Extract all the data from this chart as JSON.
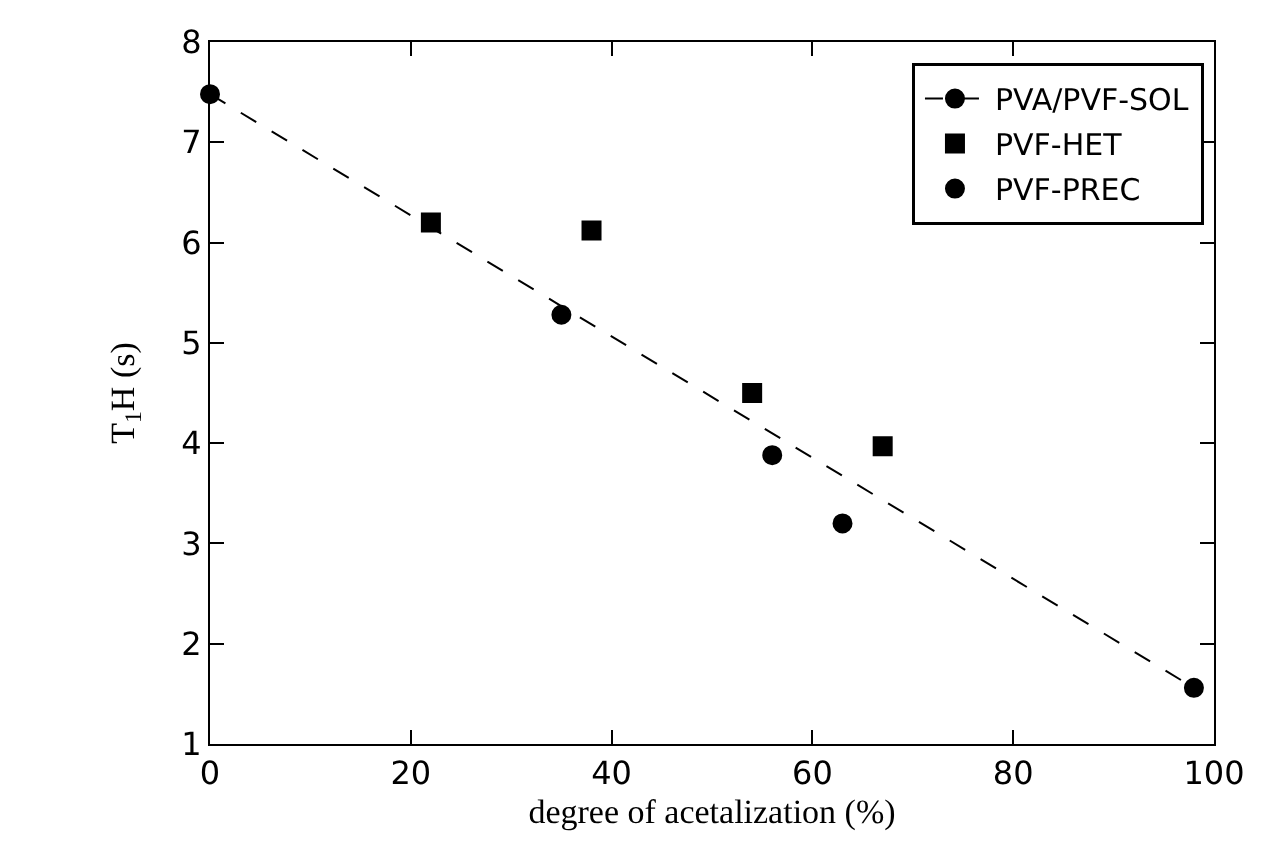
{
  "chart_data": {
    "type": "scatter",
    "xlabel": "degree of acetalization (%)",
    "ylabel": "T$_{1}$H (s)",
    "xlim": [
      0,
      100
    ],
    "xticks": [
      0,
      20,
      40,
      60,
      80,
      100
    ],
    "ylim": [
      1,
      8
    ],
    "yticks": [
      1,
      2,
      3,
      4,
      5,
      6,
      7,
      8
    ],
    "grid": false,
    "legend": "top right",
    "series": [
      {
        "name": "PVA/PVF-SOL",
        "type": "line",
        "color": "#000000",
        "marker": "circle",
        "line_style": "dashed",
        "x": [
          0,
          98
        ],
        "values": [
          7.48,
          1.56
        ]
      },
      {
        "name": "PVF-HET",
        "type": "scatter",
        "color": "#000000",
        "marker": "square",
        "x": [
          22,
          38,
          54,
          67
        ],
        "values": [
          6.2,
          6.12,
          4.5,
          3.97
        ]
      },
      {
        "name": "PVF-PREC",
        "type": "scatter",
        "color": "#000000",
        "marker": "circle",
        "x": [
          35,
          56,
          63
        ],
        "values": [
          5.28,
          3.88,
          3.2
        ]
      }
    ]
  }
}
